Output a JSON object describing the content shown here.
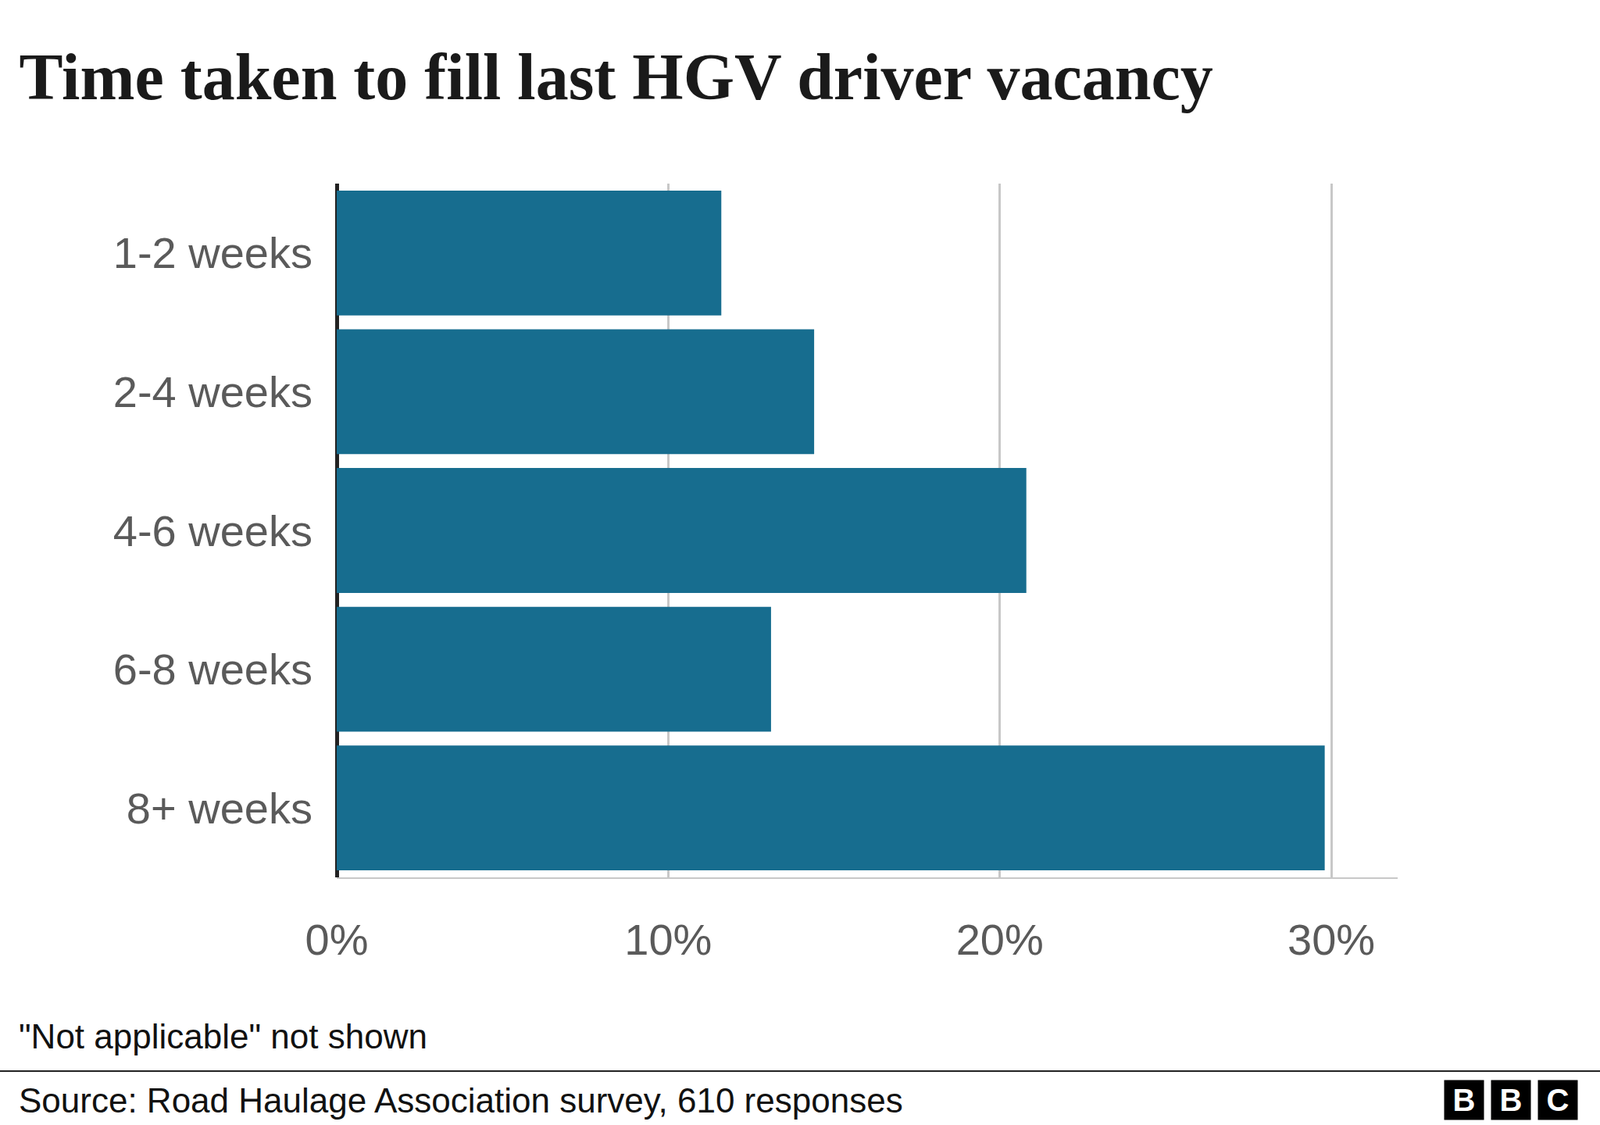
{
  "chart_data": {
    "type": "bar",
    "orientation": "horizontal",
    "title": "Time taken to fill last HGV driver vacancy",
    "categories": [
      "1-2 weeks",
      "2-4 weeks",
      "4-6 weeks",
      "6-8 weeks",
      "8+ weeks"
    ],
    "values": [
      11.6,
      14.4,
      20.8,
      13.1,
      29.8
    ],
    "color": "#176d8f",
    "xlim": [
      0,
      32
    ],
    "xticks": [
      {
        "value": 0,
        "label": "0%"
      },
      {
        "value": 10,
        "label": "10%"
      },
      {
        "value": 20,
        "label": "20%"
      },
      {
        "value": 30,
        "label": "30%"
      }
    ],
    "grid": true,
    "note": "\"Not applicable\" not shown",
    "source": "Source: Road Haulage Association survey, 610 responses",
    "logo": "BBC"
  }
}
